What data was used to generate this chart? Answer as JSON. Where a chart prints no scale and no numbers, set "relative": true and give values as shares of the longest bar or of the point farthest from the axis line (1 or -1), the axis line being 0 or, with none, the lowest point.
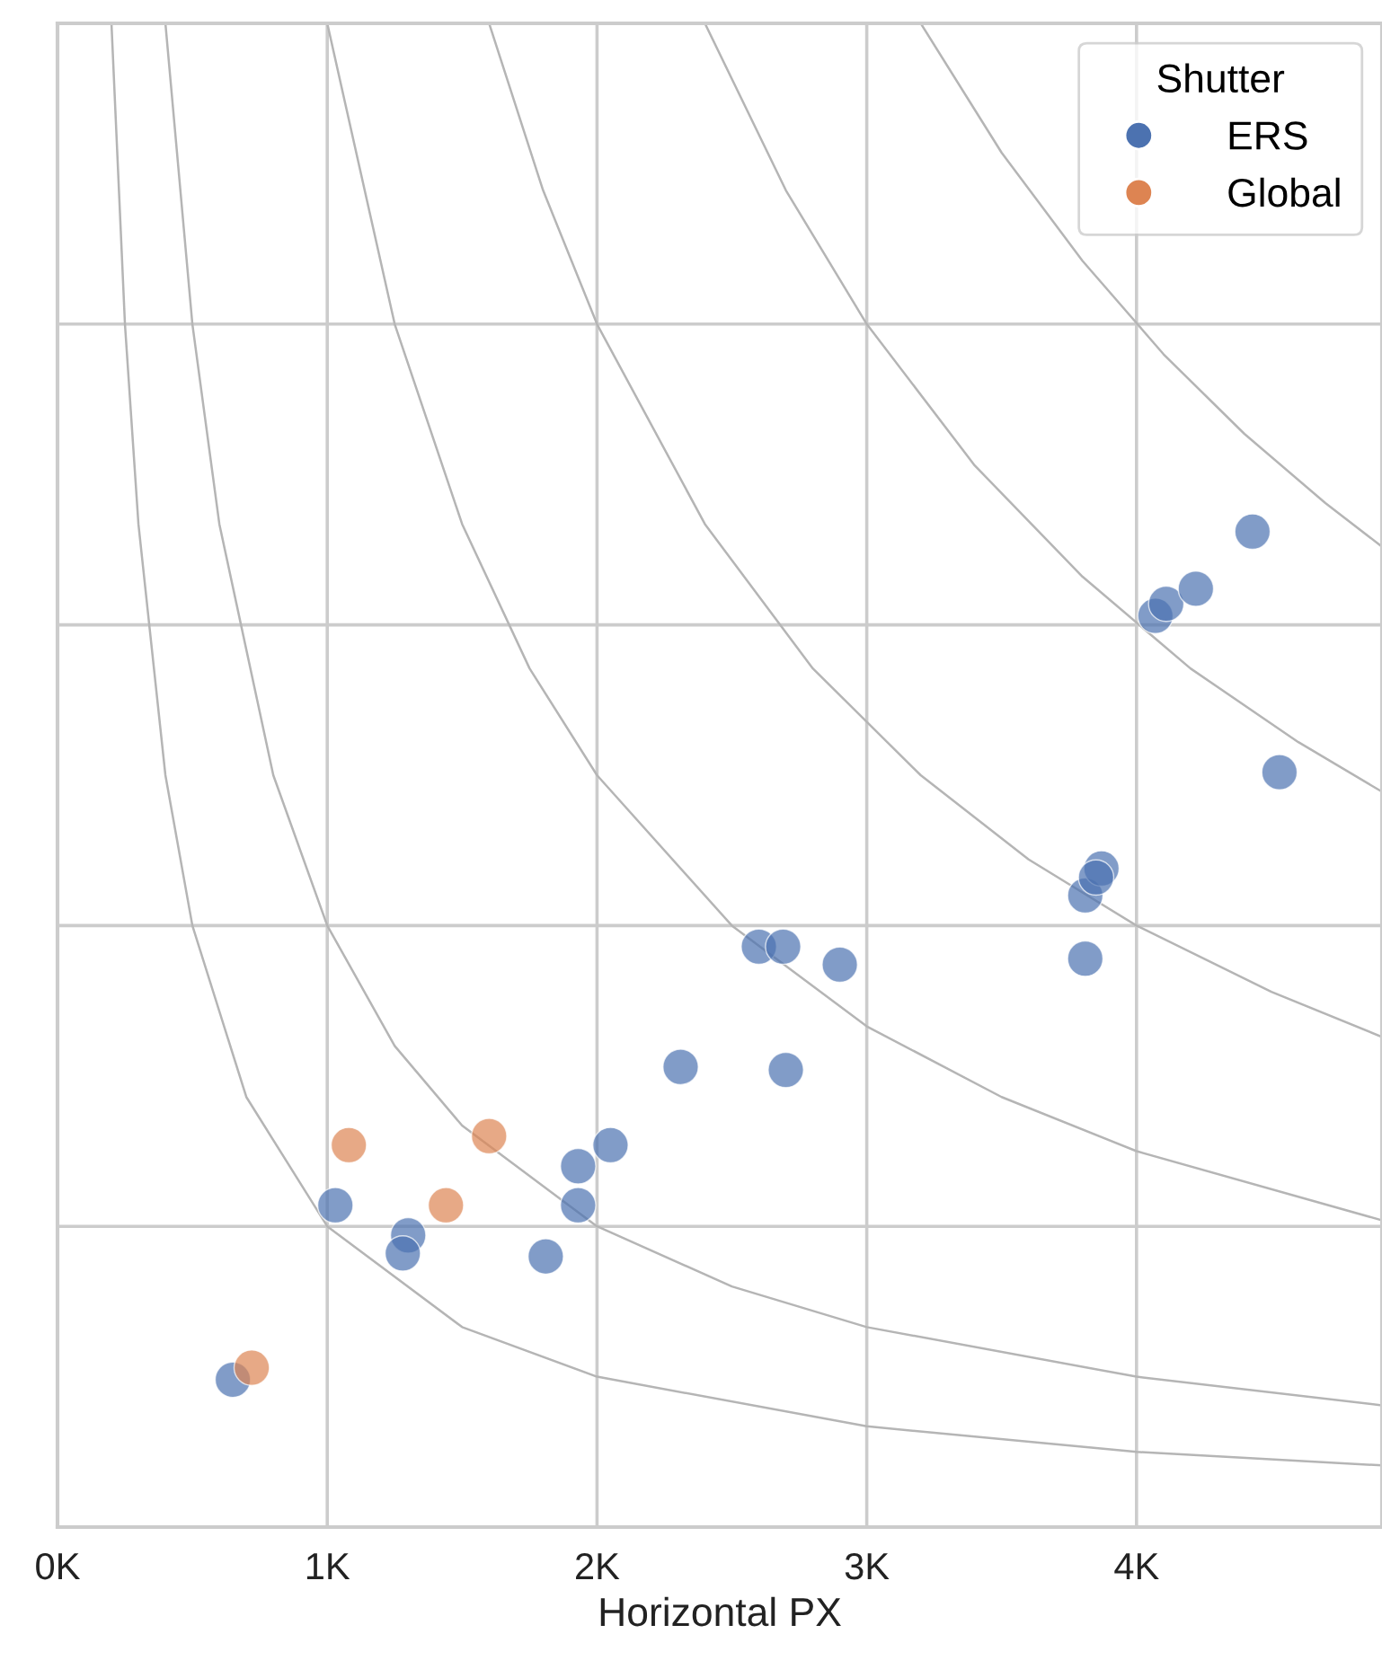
{
  "chart_data": {
    "type": "scatter",
    "xlabel": "Horizontal PX",
    "legend_title": "Shutter",
    "legend": "top right",
    "grid": true,
    "marker": "circle",
    "tick_labels": "x",
    "relative": true,
    "xlim": [
      0,
      4910
    ],
    "xticks": [
      {
        "value": 0,
        "label": "0K"
      },
      {
        "value": 1000,
        "label": "1K"
      },
      {
        "value": 2000,
        "label": "2K"
      },
      {
        "value": 3000,
        "label": "3K"
      },
      {
        "value": 4000,
        "label": "4K"
      }
    ],
    "series": [
      {
        "type": "line",
        "color": "#b5b5b5",
        "marker": "none",
        "x": [
          200,
          250,
          300,
          400,
          500,
          700,
          1000,
          1500,
          2000,
          3000,
          4000,
          4910
        ],
        "values": [
          1,
          0.8,
          0.667,
          0.5,
          0.4,
          0.286,
          0.2,
          0.133,
          0.1,
          0.067,
          0.05,
          0.041
        ]
      },
      {
        "type": "line",
        "color": "#b5b5b5",
        "marker": "none",
        "x": [
          400,
          500,
          600,
          800,
          1000,
          1250,
          1500,
          2000,
          2500,
          3000,
          4000,
          4910
        ],
        "values": [
          1,
          0.8,
          0.667,
          0.5,
          0.4,
          0.32,
          0.267,
          0.2,
          0.16,
          0.133,
          0.1,
          0.081
        ]
      },
      {
        "type": "line",
        "color": "#b5b5b5",
        "marker": "none",
        "x": [
          1000,
          1250,
          1500,
          1750,
          2000,
          2500,
          3000,
          3500,
          4000,
          4910
        ],
        "values": [
          1,
          0.8,
          0.667,
          0.571,
          0.5,
          0.4,
          0.333,
          0.286,
          0.25,
          0.204
        ]
      },
      {
        "type": "line",
        "color": "#b5b5b5",
        "marker": "none",
        "x": [
          1600,
          1800,
          2000,
          2400,
          2800,
          3200,
          3600,
          4000,
          4500,
          4910
        ],
        "values": [
          1,
          0.889,
          0.8,
          0.667,
          0.571,
          0.5,
          0.444,
          0.4,
          0.356,
          0.326
        ]
      },
      {
        "type": "line",
        "color": "#b5b5b5",
        "marker": "none",
        "x": [
          2400,
          2700,
          3000,
          3400,
          3800,
          4200,
          4600,
          4910
        ],
        "values": [
          1,
          0.889,
          0.8,
          0.706,
          0.632,
          0.571,
          0.522,
          0.489
        ]
      },
      {
        "type": "line",
        "color": "#b5b5b5",
        "marker": "none",
        "x": [
          3200,
          3500,
          3800,
          4100,
          4400,
          4700,
          4910
        ],
        "values": [
          1,
          0.914,
          0.842,
          0.78,
          0.727,
          0.681,
          0.652
        ]
      },
      {
        "name": "ERS",
        "color": "#4c72b0",
        "x": [
          650,
          1030,
          1300,
          1280,
          1810,
          1930,
          1930,
          2050,
          2310,
          2700,
          2600,
          2690,
          2900,
          3810,
          3810,
          3870,
          3850,
          4070,
          4110,
          4220,
          4430,
          4530
        ],
        "values": [
          0.098,
          0.214,
          0.194,
          0.182,
          0.18,
          0.24,
          0.214,
          0.254,
          0.306,
          0.304,
          0.386,
          0.386,
          0.374,
          0.378,
          0.42,
          0.438,
          0.432,
          0.606,
          0.614,
          0.624,
          0.662,
          0.502
        ]
      },
      {
        "name": "Global",
        "color": "#dd8452",
        "x": [
          720,
          1080,
          1600,
          1440
        ],
        "values": [
          0.106,
          0.254,
          0.26,
          0.214
        ]
      }
    ]
  }
}
